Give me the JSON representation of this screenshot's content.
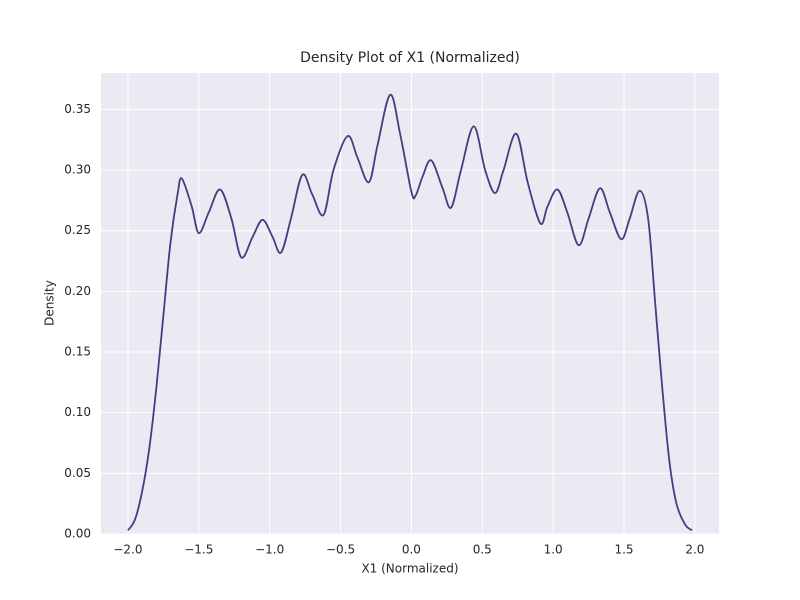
{
  "chart_data": {
    "type": "line",
    "title": "Density Plot of X1 (Normalized)",
    "x_label": "X1 (Normalized)",
    "y_label": "Density",
    "x": [
      -2.0,
      -1.95,
      -1.9,
      -1.85,
      -1.8,
      -1.75,
      -1.7,
      -1.65,
      -1.62,
      -1.55,
      -1.5,
      -1.43,
      -1.35,
      -1.27,
      -1.2,
      -1.12,
      -1.05,
      -0.98,
      -0.92,
      -0.85,
      -0.77,
      -0.7,
      -0.62,
      -0.55,
      -0.45,
      -0.38,
      -0.3,
      -0.24,
      -0.15,
      -0.08,
      0.0,
      0.03,
      0.08,
      0.14,
      0.22,
      0.28,
      0.35,
      0.44,
      0.52,
      0.59,
      0.65,
      0.74,
      0.82,
      0.91,
      0.96,
      1.03,
      1.1,
      1.18,
      1.25,
      1.33,
      1.4,
      1.48,
      1.54,
      1.61,
      1.67,
      1.72,
      1.77,
      1.82,
      1.87,
      1.93,
      1.98
    ],
    "series": [
      {
        "color": "#463c82",
        "values": [
          0.003,
          0.012,
          0.035,
          0.07,
          0.12,
          0.18,
          0.24,
          0.28,
          0.293,
          0.27,
          0.248,
          0.265,
          0.284,
          0.26,
          0.228,
          0.245,
          0.259,
          0.245,
          0.232,
          0.26,
          0.296,
          0.28,
          0.263,
          0.3,
          0.328,
          0.31,
          0.29,
          0.32,
          0.362,
          0.33,
          0.282,
          0.279,
          0.295,
          0.308,
          0.285,
          0.269,
          0.3,
          0.336,
          0.3,
          0.281,
          0.3,
          0.33,
          0.29,
          0.256,
          0.27,
          0.284,
          0.265,
          0.238,
          0.26,
          0.285,
          0.265,
          0.243,
          0.26,
          0.283,
          0.26,
          0.19,
          0.12,
          0.06,
          0.025,
          0.008,
          0.003
        ]
      }
    ],
    "xlim": [
      -2.19,
      2.17
    ],
    "ylim": [
      0,
      0.38
    ],
    "xticks": [
      {
        "value": -2.0,
        "label": "−2.0"
      },
      {
        "value": -1.5,
        "label": "−1.5"
      },
      {
        "value": -1.0,
        "label": "−1.0"
      },
      {
        "value": -0.5,
        "label": "−0.5"
      },
      {
        "value": 0.0,
        "label": "0.0"
      },
      {
        "value": 0.5,
        "label": "0.5"
      },
      {
        "value": 1.0,
        "label": "1.0"
      },
      {
        "value": 1.5,
        "label": "1.5"
      },
      {
        "value": 2.0,
        "label": "2.0"
      }
    ],
    "yticks": [
      {
        "value": 0,
        "label": "0.00"
      },
      {
        "value": 0.05,
        "label": "0.05"
      },
      {
        "value": 0.1,
        "label": "0.10"
      },
      {
        "value": 0.15,
        "label": "0.15"
      },
      {
        "value": 0.2,
        "label": "0.20"
      },
      {
        "value": 0.25,
        "label": "0.25"
      },
      {
        "value": 0.3,
        "label": "0.30"
      },
      {
        "value": 0.35,
        "label": "0.35"
      }
    ],
    "grid": true
  }
}
